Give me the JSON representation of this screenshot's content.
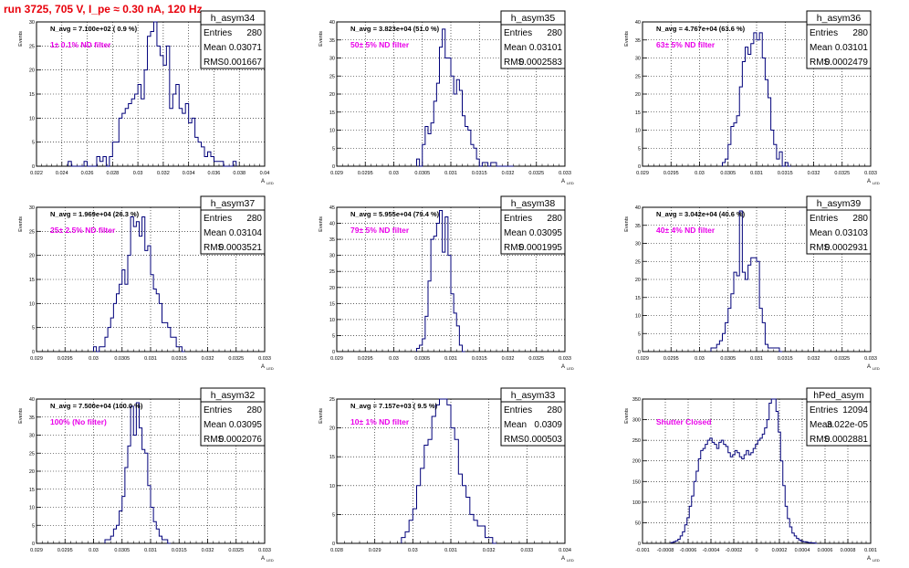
{
  "title": "run 3725,   705 V, I_pe ≈ 0.30 nA, 120 Hz",
  "colors": {
    "histogram": "#00007a",
    "annotation": "#e900e9",
    "title": "#e8000b",
    "grid": "#000000"
  },
  "ylabel": "Events",
  "xlabel": "A",
  "xlabel_sub": "LED",
  "stats_labels": {
    "entries": "Entries",
    "mean": "Mean",
    "rms": "RMS"
  },
  "chart_data": [
    {
      "type": "histogram",
      "name": "h_asym34",
      "navg": "N_avg = 7.100e+02 ( 0.9 %)",
      "note": "1± 0.1% ND filter",
      "entries": "280",
      "mean": "0.03071",
      "rms": "0.001667",
      "xlim": [
        0.022,
        0.04
      ],
      "ylim": [
        0,
        30
      ],
      "xticks": [
        0.022,
        0.024,
        0.026,
        0.028,
        0.03,
        0.032,
        0.034,
        0.036,
        0.038,
        0.04
      ],
      "xtick_labels": [
        "0.022",
        "0.024",
        "0.026",
        "0.028",
        "0.03",
        "0.032",
        "0.034",
        "0.036",
        "0.038",
        "0.04"
      ],
      "yticks": [
        0,
        5,
        10,
        15,
        20,
        25,
        30
      ],
      "ytick_labels": [
        "0",
        "5",
        "10",
        "15",
        "20",
        "25",
        "30"
      ],
      "bin_start": 0.0245,
      "bin_width": 0.00025,
      "counts": [
        1,
        0,
        0,
        0,
        0,
        1,
        0,
        0,
        0,
        2,
        1,
        2,
        0,
        2,
        5,
        5,
        10,
        11,
        12,
        13,
        14,
        15,
        17,
        14,
        20,
        27,
        28,
        30,
        25,
        23,
        21,
        25,
        12,
        15,
        17,
        12,
        11,
        13,
        9,
        10,
        6,
        5,
        4,
        2,
        3,
        2,
        1,
        1,
        1,
        0,
        0,
        0,
        1
      ]
    },
    {
      "type": "histogram",
      "name": "h_asym35",
      "navg": "N_avg = 3.823e+04 (51.0 %)",
      "note": "50± 5% ND filter",
      "entries": "280",
      "mean": "0.03101",
      "rms": "0.0002583",
      "xlim": [
        0.029,
        0.033
      ],
      "ylim": [
        0,
        40
      ],
      "xticks": [
        0.029,
        0.0295,
        0.03,
        0.0305,
        0.031,
        0.0315,
        0.032,
        0.0325,
        0.033
      ],
      "xtick_labels": [
        "0.029",
        "0.0295",
        "0.03",
        "0.0305",
        "0.031",
        "0.0315",
        "0.032",
        "0.0325",
        "0.033"
      ],
      "yticks": [
        0,
        5,
        10,
        15,
        20,
        25,
        30,
        35,
        40
      ],
      "ytick_labels": [
        "0",
        "5",
        "10",
        "15",
        "20",
        "25",
        "30",
        "35",
        "40"
      ],
      "bin_start": 0.0304,
      "bin_width": 5e-05,
      "counts": [
        2,
        0,
        6,
        11,
        9,
        12,
        18,
        23,
        33,
        38,
        30,
        30,
        25,
        20,
        24,
        21,
        14,
        11,
        10,
        6,
        5,
        2,
        0,
        1,
        1,
        0,
        1,
        1,
        0,
        0,
        0,
        0,
        0,
        0
      ]
    },
    {
      "type": "histogram",
      "name": "h_asym36",
      "navg": "N_avg = 4.767e+04 (63.6 %)",
      "note": "63± 5% ND filter",
      "entries": "280",
      "mean": "0.03101",
      "rms": "0.0002479",
      "xlim": [
        0.029,
        0.033
      ],
      "ylim": [
        0,
        40
      ],
      "xticks": [
        0.029,
        0.0295,
        0.03,
        0.0305,
        0.031,
        0.0315,
        0.032,
        0.0325,
        0.033
      ],
      "xtick_labels": [
        "0.029",
        "0.0295",
        "0.03",
        "0.0305",
        "0.031",
        "0.0315",
        "0.032",
        "0.0325",
        "0.033"
      ],
      "yticks": [
        0,
        5,
        10,
        15,
        20,
        25,
        30,
        35,
        40
      ],
      "ytick_labels": [
        "0",
        "5",
        "10",
        "15",
        "20",
        "25",
        "30",
        "35",
        "40"
      ],
      "bin_start": 0.0304,
      "bin_width": 5e-05,
      "counts": [
        1,
        2,
        6,
        11,
        12,
        14,
        22,
        29,
        33,
        31,
        34,
        37,
        35,
        37,
        30,
        24,
        19,
        10,
        6,
        2,
        4,
        0,
        1,
        0
      ]
    },
    {
      "type": "histogram",
      "name": "h_asym37",
      "navg": "N_avg = 1.969e+04 (26.3 %)",
      "note": "25± 2.5% ND filter",
      "entries": "280",
      "mean": "0.03104",
      "rms": "0.0003521",
      "xlim": [
        0.029,
        0.033
      ],
      "ylim": [
        0,
        30
      ],
      "xticks": [
        0.029,
        0.0295,
        0.03,
        0.0305,
        0.031,
        0.0315,
        0.032,
        0.0325,
        0.033
      ],
      "xtick_labels": [
        "0.029",
        "0.0295",
        "0.03",
        "0.0305",
        "0.031",
        "0.0315",
        "0.032",
        "0.0325",
        "0.033"
      ],
      "yticks": [
        0,
        5,
        10,
        15,
        20,
        25,
        30
      ],
      "ytick_labels": [
        "0",
        "5",
        "10",
        "15",
        "20",
        "25",
        "30"
      ],
      "bin_start": 0.03,
      "bin_width": 5e-05,
      "counts": [
        1,
        0,
        1,
        1,
        3,
        5,
        7,
        10,
        12,
        14,
        17,
        14,
        20,
        28,
        26,
        27,
        24,
        28,
        21,
        22,
        16,
        13,
        12,
        10,
        6,
        6,
        5,
        3,
        3,
        1,
        1,
        0
      ]
    },
    {
      "type": "histogram",
      "name": "h_asym38",
      "navg": "N_avg = 5.955e+04 (79.4 %)",
      "note": "79± 5% ND filter",
      "entries": "280",
      "mean": "0.03095",
      "rms": "0.0001995",
      "xlim": [
        0.029,
        0.033
      ],
      "ylim": [
        0,
        45
      ],
      "xticks": [
        0.029,
        0.0295,
        0.03,
        0.0305,
        0.031,
        0.0315,
        0.032,
        0.0325,
        0.033
      ],
      "xtick_labels": [
        "0.029",
        "0.0295",
        "0.03",
        "0.0305",
        "0.031",
        "0.0315",
        "0.032",
        "0.0325",
        "0.033"
      ],
      "yticks": [
        0,
        5,
        10,
        15,
        20,
        25,
        30,
        35,
        40,
        45
      ],
      "ytick_labels": [
        "0",
        "5",
        "10",
        "15",
        "20",
        "25",
        "30",
        "35",
        "40",
        "45"
      ],
      "bin_start": 0.0304,
      "bin_width": 5e-05,
      "counts": [
        1,
        2,
        4,
        11,
        22,
        35,
        36,
        40,
        44,
        31,
        42,
        30,
        18,
        12,
        8,
        2,
        0
      ]
    },
    {
      "type": "histogram",
      "name": "h_asym39",
      "navg": "N_avg = 3.042e+04 (40.6 %)",
      "note": "40± 4% ND filter",
      "entries": "280",
      "mean": "0.03103",
      "rms": "0.0002931",
      "xlim": [
        0.029,
        0.033
      ],
      "ylim": [
        0,
        40
      ],
      "xticks": [
        0.029,
        0.0295,
        0.03,
        0.0305,
        0.031,
        0.0315,
        0.032,
        0.0325,
        0.033
      ],
      "xtick_labels": [
        "0.029",
        "0.0295",
        "0.03",
        "0.0305",
        "0.031",
        "0.0315",
        "0.032",
        "0.0325",
        "0.033"
      ],
      "yticks": [
        0,
        5,
        10,
        15,
        20,
        25,
        30,
        35,
        40
      ],
      "ytick_labels": [
        "0",
        "5",
        "10",
        "15",
        "20",
        "25",
        "30",
        "35",
        "40"
      ],
      "bin_start": 0.0302,
      "bin_width": 5e-05,
      "counts": [
        1,
        1,
        2,
        3,
        5,
        8,
        12,
        16,
        22,
        21,
        39,
        22,
        20,
        24,
        26,
        26,
        25,
        12,
        8,
        2,
        1,
        1,
        1,
        1,
        0
      ]
    },
    {
      "type": "histogram",
      "name": "h_asym32",
      "navg": "N_avg = 7.500e+04 (100.0 %)",
      "note": "100% (No filter)",
      "entries": "280",
      "mean": "0.03095",
      "rms": "0.0002076",
      "xlim": [
        0.029,
        0.033
      ],
      "ylim": [
        0,
        40
      ],
      "xticks": [
        0.029,
        0.0295,
        0.03,
        0.0305,
        0.031,
        0.0315,
        0.032,
        0.0325,
        0.033
      ],
      "xtick_labels": [
        "0.029",
        "0.0295",
        "0.03",
        "0.0305",
        "0.031",
        "0.0315",
        "0.032",
        "0.0325",
        "0.033"
      ],
      "yticks": [
        0,
        5,
        10,
        15,
        20,
        25,
        30,
        35,
        40
      ],
      "ytick_labels": [
        "0",
        "5",
        "10",
        "15",
        "20",
        "25",
        "30",
        "35",
        "40"
      ],
      "bin_start": 0.0302,
      "bin_width": 5e-05,
      "counts": [
        1,
        1,
        2,
        4,
        5,
        9,
        13,
        21,
        27,
        38,
        30,
        39,
        32,
        26,
        25,
        16,
        10,
        6,
        4,
        2,
        1,
        1,
        0
      ]
    },
    {
      "type": "histogram",
      "name": "h_asym33",
      "navg": "N_avg = 7.157e+03 ( 9.5 %)",
      "note": "10± 1% ND filter",
      "entries": "280",
      "mean": "0.0309",
      "rms": "0.000503",
      "xlim": [
        0.028,
        0.034
      ],
      "ylim": [
        0,
        25
      ],
      "xticks": [
        0.028,
        0.029,
        0.03,
        0.031,
        0.032,
        0.033,
        0.034
      ],
      "xtick_labels": [
        "0.028",
        "0.029",
        "0.03",
        "0.031",
        "0.032",
        "0.033",
        "0.034"
      ],
      "yticks": [
        0,
        5,
        10,
        15,
        20,
        25
      ],
      "ytick_labels": [
        "0",
        "5",
        "10",
        "15",
        "20",
        "25"
      ],
      "bin_start": 0.0297,
      "bin_width": 0.0001,
      "counts": [
        1,
        2,
        4,
        6,
        10,
        13,
        17,
        18,
        22,
        24,
        25,
        25,
        24,
        20,
        18,
        12,
        10,
        8,
        5,
        4,
        3,
        3,
        1,
        1,
        0
      ]
    },
    {
      "type": "histogram",
      "name": "hPed_asym",
      "navg": "",
      "note": "Shutter Closed",
      "entries": "12094",
      "mean": "3.022e-05",
      "rms": "0.0002881",
      "xlim": [
        -0.001,
        0.001
      ],
      "ylim": [
        0,
        350
      ],
      "xticks": [
        -0.001,
        -0.0008,
        -0.0006,
        -0.0004,
        -0.0002,
        0,
        0.0002,
        0.0004,
        0.0006,
        0.0008,
        0.001
      ],
      "xtick_labels": [
        "-0.001",
        "-0.0008",
        "-0.0006",
        "-0.0004",
        "-0.0002",
        "0",
        "0.0002",
        "0.0004",
        "0.0006",
        "0.0008",
        "0.001"
      ],
      "yticks": [
        0,
        50,
        100,
        150,
        200,
        250,
        300,
        350
      ],
      "ytick_labels": [
        "0",
        "50",
        "100",
        "150",
        "200",
        "250",
        "300",
        "350"
      ],
      "bin_start": -0.00075,
      "bin_width": 2e-05,
      "counts": [
        2,
        4,
        6,
        10,
        18,
        28,
        45,
        62,
        90,
        115,
        150,
        175,
        205,
        225,
        230,
        240,
        250,
        255,
        245,
        240,
        230,
        245,
        250,
        240,
        235,
        220,
        210,
        215,
        225,
        220,
        210,
        205,
        215,
        225,
        215,
        220,
        230,
        240,
        250,
        255,
        265,
        280,
        300,
        340,
        365,
        350,
        320,
        270,
        200,
        140,
        90,
        60,
        40,
        25,
        18,
        12,
        8,
        5,
        4,
        3,
        2,
        1,
        1,
        0
      ]
    }
  ]
}
